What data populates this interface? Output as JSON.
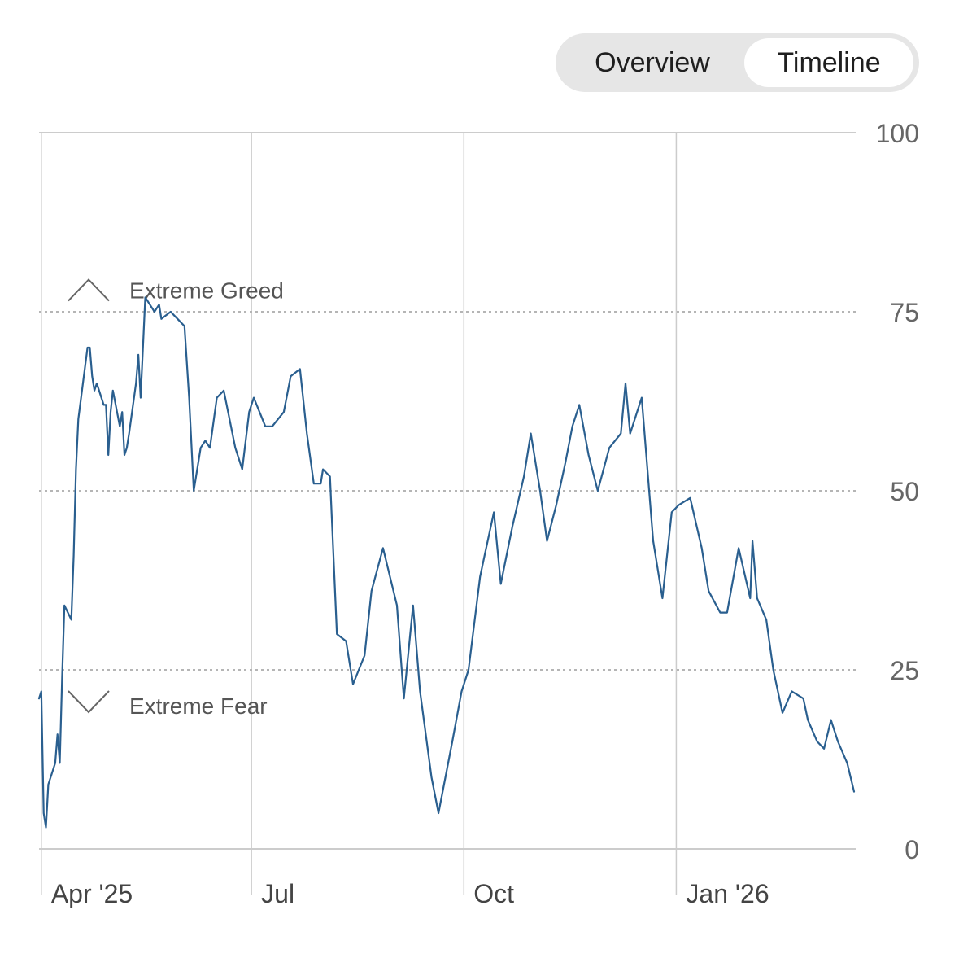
{
  "toggle": {
    "overview_label": "Overview",
    "timeline_label": "Timeline",
    "selected": "Timeline"
  },
  "colors": {
    "line": "#2a5f8f",
    "grid": "#b5b5b5",
    "axis": "#cccccc",
    "toggle_bg": "#e6e6e6"
  },
  "chart_data": {
    "type": "line",
    "title": "",
    "xlabel": "",
    "ylabel": "",
    "ylim": [
      0,
      100
    ],
    "xlim": [
      "2025-03-31",
      "2026-03-19"
    ],
    "y_ticks": [
      {
        "value": 100,
        "label": "100"
      },
      {
        "value": 75,
        "label": "75"
      },
      {
        "value": 50,
        "label": "50"
      },
      {
        "value": 25,
        "label": "25"
      },
      {
        "value": 0,
        "label": "0"
      }
    ],
    "x_ticks": [
      {
        "date": "2025-04-01",
        "label": "Apr '25"
      },
      {
        "date": "2025-07-01",
        "label": "Jul"
      },
      {
        "date": "2025-10-01",
        "label": "Oct"
      },
      {
        "date": "2026-01-01",
        "label": "Jan '26"
      }
    ],
    "annotations": [
      {
        "label": "Extreme Greed",
        "icon": "chevron-up-icon",
        "y": 78
      },
      {
        "label": "Extreme Fear",
        "icon": "chevron-down-icon",
        "y": 20
      }
    ],
    "series": [
      {
        "x": [
          "2025-03-31",
          "2025-04-01",
          "2025-04-02",
          "2025-04-03",
          "2025-04-04",
          "2025-04-07",
          "2025-04-08",
          "2025-04-09",
          "2025-04-10",
          "2025-04-11",
          "2025-04-14",
          "2025-04-15",
          "2025-04-16",
          "2025-04-17",
          "2025-04-21",
          "2025-04-22",
          "2025-04-23",
          "2025-04-24",
          "2025-04-25",
          "2025-04-28",
          "2025-04-29",
          "2025-04-30",
          "2025-05-01",
          "2025-05-02",
          "2025-05-05",
          "2025-05-06",
          "2025-05-07",
          "2025-05-08",
          "2025-05-09",
          "2025-05-12",
          "2025-05-13",
          "2025-05-14",
          "2025-05-16",
          "2025-05-20",
          "2025-05-22",
          "2025-05-23",
          "2025-05-27",
          "2025-05-30",
          "2025-06-02",
          "2025-06-04",
          "2025-06-06",
          "2025-06-09",
          "2025-06-11",
          "2025-06-13",
          "2025-06-16",
          "2025-06-19",
          "2025-06-24",
          "2025-06-27",
          "2025-06-30",
          "2025-07-01",
          "2025-07-02",
          "2025-07-07",
          "2025-07-10",
          "2025-07-15",
          "2025-07-18",
          "2025-07-22",
          "2025-07-25",
          "2025-07-28",
          "2025-07-31",
          "2025-08-01",
          "2025-08-04",
          "2025-08-07",
          "2025-08-11",
          "2025-08-14",
          "2025-08-19",
          "2025-08-22",
          "2025-08-27",
          "2025-09-02",
          "2025-09-05",
          "2025-09-09",
          "2025-09-12",
          "2025-09-17",
          "2025-09-20",
          "2025-09-26",
          "2025-09-30",
          "2025-10-03",
          "2025-10-08",
          "2025-10-10",
          "2025-10-14",
          "2025-10-17",
          "2025-10-22",
          "2025-10-27",
          "2025-10-30",
          "2025-11-03",
          "2025-11-06",
          "2025-11-10",
          "2025-11-14",
          "2025-11-17",
          "2025-11-20",
          "2025-11-24",
          "2025-11-28",
          "2025-12-03",
          "2025-12-08",
          "2025-12-10",
          "2025-12-12",
          "2025-12-17",
          "2025-12-22",
          "2025-12-26",
          "2025-12-30",
          "2026-01-02",
          "2026-01-07",
          "2026-01-12",
          "2026-01-15",
          "2026-01-20",
          "2026-01-23",
          "2026-01-28",
          "2026-02-02",
          "2026-02-03",
          "2026-02-05",
          "2026-02-09",
          "2026-02-12",
          "2026-02-16",
          "2026-02-20",
          "2026-02-25",
          "2026-02-27",
          "2026-03-03",
          "2026-03-06",
          "2026-03-09",
          "2026-03-12",
          "2026-03-16",
          "2026-03-19"
        ],
        "values": [
          21,
          22,
          5,
          3,
          9,
          12,
          16,
          12,
          24,
          34,
          32,
          41,
          53,
          60,
          70,
          70,
          66,
          64,
          65,
          62,
          62,
          55,
          61,
          64,
          59,
          61,
          55,
          56,
          58,
          65,
          69,
          63,
          77,
          75,
          76,
          74,
          75,
          74,
          73,
          63,
          50,
          56,
          57,
          56,
          63,
          64,
          56,
          53,
          61,
          62,
          63,
          59,
          59,
          61,
          66,
          67,
          58,
          51,
          51,
          53,
          52,
          30,
          29,
          23,
          27,
          36,
          42,
          34,
          21,
          34,
          22,
          10,
          5,
          15,
          22,
          25,
          38,
          41,
          47,
          37,
          45,
          52,
          58,
          50,
          43,
          48,
          54,
          59,
          62,
          55,
          50,
          56,
          58,
          65,
          58,
          63,
          43,
          35,
          47,
          48,
          49,
          42,
          36,
          33,
          33,
          42,
          35,
          43,
          35,
          32,
          25,
          19,
          22,
          21,
          18,
          15,
          14,
          18,
          15,
          12,
          8
        ]
      }
    ]
  }
}
